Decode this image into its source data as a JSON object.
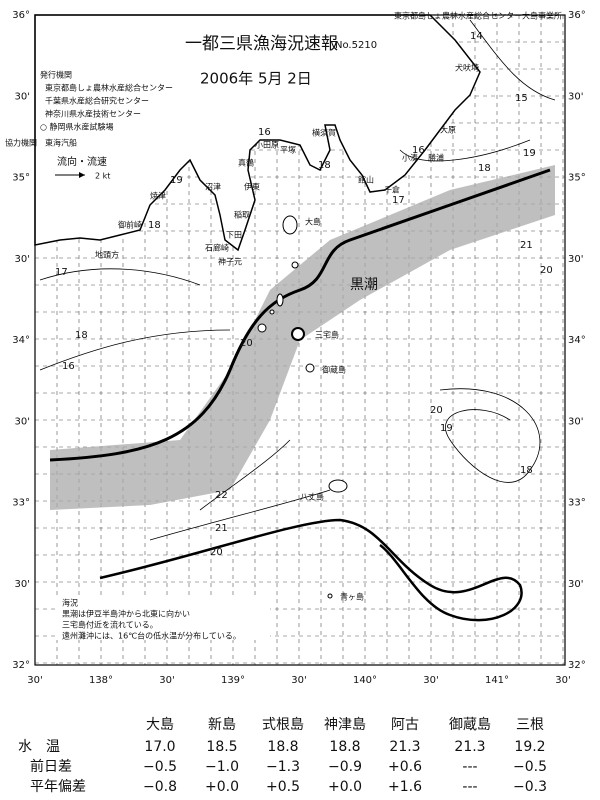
{
  "header": {
    "title": "一都三県漁海況速報",
    "number": "No.5210",
    "date": "2006年 5月 2日",
    "office": "東京都島しょ農林水産総合センター大島事業所"
  },
  "issuers": {
    "heading": "発行機関",
    "items": [
      "東京都島しょ農林水産総合センター",
      "千葉県水産総合研究センター",
      "神奈川県水産技術センター",
      "○ 静岡県水産試験場"
    ]
  },
  "cooperation": "協力機関　東海汽船",
  "current_legend": {
    "label": "流向・流速",
    "speed": "2 kt"
  },
  "lat_labels": [
    "36°",
    "30'",
    "35°",
    "30'",
    "34°",
    "30'",
    "33°",
    "30'",
    "32°"
  ],
  "lon_labels": [
    "30'",
    "138°",
    "30'",
    "139°",
    "30'",
    "140°",
    "30'",
    "141°",
    "30'"
  ],
  "map_labels": [
    "犬吠埼",
    "大原",
    "勝浦",
    "小湊",
    "千倉",
    "館山",
    "横須賀",
    "平塚",
    "小田原",
    "真鶴",
    "伊東",
    "稲取",
    "下田",
    "石廊崎",
    "沼津",
    "焼津",
    "御前崎",
    "地頭方",
    "大島",
    "三宅島",
    "御蔵島",
    "八丈島",
    "青ヶ島",
    "黒潮",
    "神子元"
  ],
  "isotherm_labels": [
    "14",
    "15",
    "16",
    "16",
    "17",
    "18",
    "19",
    "21",
    "20",
    "17",
    "19",
    "18",
    "18",
    "16",
    "20",
    "22",
    "21",
    "20",
    "20",
    "19",
    "18",
    "18"
  ],
  "notes": {
    "heading": "海況",
    "lines": [
      "黒潮は伊豆半島沖から北東に向かい",
      "三宅島付近を流れている。",
      "遠州灘沖には、16℃台の低水温が分布している。"
    ]
  },
  "table": {
    "stations": [
      "大島",
      "新島",
      "式根島",
      "神津島",
      "阿古",
      "御蔵島",
      "三根"
    ],
    "rows": [
      {
        "label": "水　温",
        "values": [
          "17.0",
          "18.5",
          "18.8",
          "18.8",
          "21.3",
          "21.3",
          "19.2"
        ]
      },
      {
        "label": "前日差",
        "values": [
          "−0.5",
          "−1.0",
          "−1.3",
          "−0.9",
          "+0.6",
          "---",
          "−0.5"
        ]
      },
      {
        "label": "平年偏差",
        "values": [
          "−0.8",
          "+0.0",
          "+0.5",
          "+0.0",
          "+1.6",
          "---",
          "−0.3"
        ]
      }
    ]
  }
}
